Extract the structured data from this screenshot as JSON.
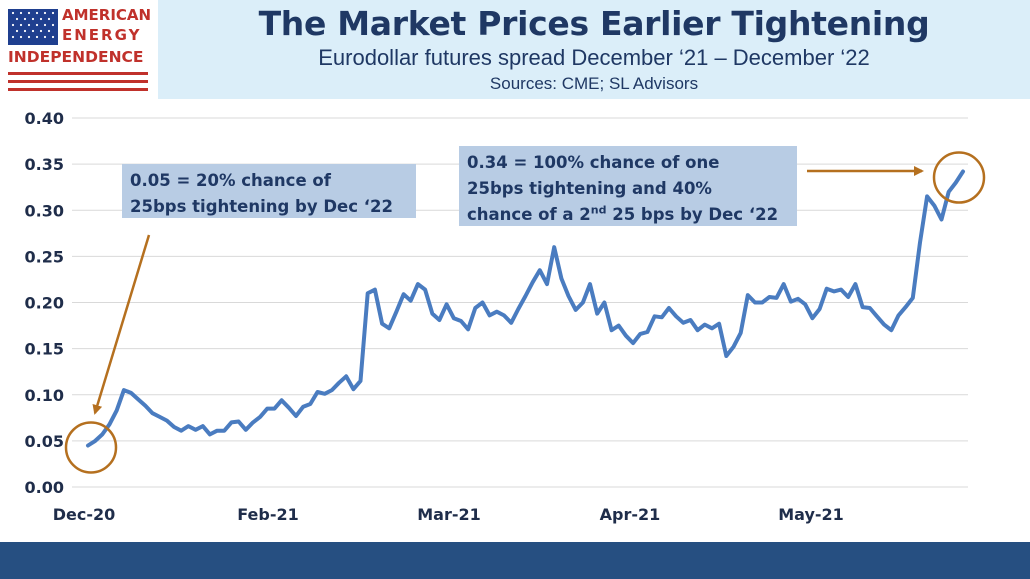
{
  "logo": {
    "line1": "AMERICAN",
    "line2": "ENERGY",
    "line3": "INDEPENDENCE"
  },
  "header": {
    "title": "The Market Prices Earlier Tightening",
    "subtitle": "Eurodollar futures spread December ‘21 – December ‘22",
    "sources": "Sources: CME; SL Advisors"
  },
  "annotations": {
    "left": {
      "line1": "0.05 = 20% chance of",
      "line2": "25bps tightening by Dec ‘22"
    },
    "right": {
      "line1": "0.34 = 100% chance of one",
      "line2": "25bps tightening and 40%",
      "line3_a": "chance of a 2",
      "line3_sup": "nd",
      "line3_b": " 25 bps by Dec ‘22"
    }
  },
  "colors": {
    "line": "#4a7cc0",
    "circle": "#b5701f",
    "arrow": "#b5701f",
    "annotation_bg": "#b8cce4",
    "title": "#1f3864",
    "footer": "#264f81",
    "grid": "#d9d9d9"
  },
  "chart_data": {
    "type": "line",
    "title": "",
    "xlabel": "",
    "ylabel": "",
    "ylim": [
      0,
      0.4
    ],
    "yticks": [
      "0.00",
      "0.05",
      "0.10",
      "0.15",
      "0.20",
      "0.25",
      "0.30",
      "0.35",
      "0.40"
    ],
    "xticks": [
      "Dec-20",
      "Feb-21",
      "Mar-21",
      "Apr-21",
      "May-21"
    ],
    "grid": true,
    "series": [
      {
        "values": [
          0.045,
          0.05,
          0.057,
          0.068,
          0.083,
          0.105,
          0.102,
          0.095,
          0.088,
          0.08,
          0.076,
          0.072,
          0.065,
          0.061,
          0.066,
          0.062,
          0.066,
          0.057,
          0.061,
          0.061,
          0.07,
          0.071,
          0.062,
          0.07,
          0.076,
          0.085,
          0.085,
          0.094,
          0.086,
          0.077,
          0.087,
          0.09,
          0.103,
          0.101,
          0.105,
          0.113,
          0.12,
          0.106,
          0.115,
          0.21,
          0.214,
          0.177,
          0.172,
          0.19,
          0.209,
          0.202,
          0.22,
          0.214,
          0.188,
          0.181,
          0.198,
          0.183,
          0.18,
          0.171,
          0.194,
          0.2,
          0.186,
          0.19,
          0.186,
          0.178,
          0.193,
          0.207,
          0.222,
          0.235,
          0.22,
          0.26,
          0.226,
          0.207,
          0.192,
          0.2,
          0.22,
          0.188,
          0.2,
          0.17,
          0.175,
          0.164,
          0.156,
          0.166,
          0.168,
          0.185,
          0.184,
          0.194,
          0.185,
          0.178,
          0.181,
          0.17,
          0.176,
          0.172,
          0.177,
          0.142,
          0.152,
          0.167,
          0.208,
          0.2,
          0.2,
          0.206,
          0.205,
          0.22,
          0.201,
          0.204,
          0.198,
          0.183,
          0.193,
          0.215,
          0.212,
          0.214,
          0.206,
          0.22,
          0.195,
          0.194,
          0.185,
          0.176,
          0.17,
          0.186,
          0.195,
          0.205,
          0.265,
          0.315,
          0.305,
          0.29,
          0.32,
          0.33,
          0.342
        ]
      }
    ]
  }
}
